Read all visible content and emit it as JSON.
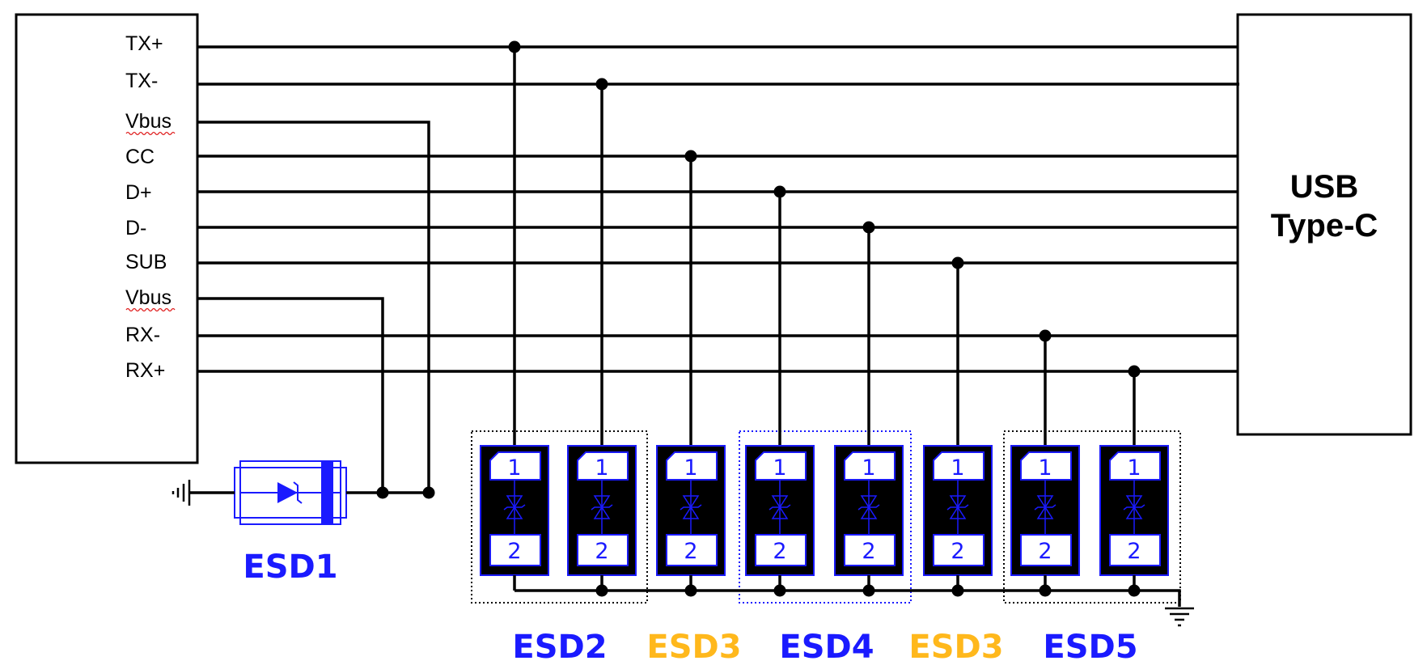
{
  "left_block": {
    "pins": [
      "TX+",
      "TX-",
      "Vbus",
      "CC",
      "D+",
      "D-",
      "SUB",
      "Vbus",
      "RX-",
      "RX+"
    ]
  },
  "connector": {
    "line1": "USB",
    "line2": "Type-C"
  },
  "esd1": {
    "label": "ESD1",
    "color": "#1a1aff"
  },
  "esd_groups": [
    {
      "label": "ESD2",
      "color": "#1a1aff",
      "fill": "#dbeaf2",
      "border": "dotted-black"
    },
    {
      "label": "ESD3",
      "color": "#ffb81c",
      "fill": "#ffffff",
      "border": "none"
    },
    {
      "label": "ESD4",
      "color": "#1a1aff",
      "fill": "#fbe5d8",
      "border": "dotted-blue"
    },
    {
      "label": "ESD3",
      "color": "#ffb81c",
      "fill": "#ffffff",
      "border": "none"
    },
    {
      "label": "ESD5",
      "color": "#1a1aff",
      "fill": "#e4ead9",
      "border": "dotted-black"
    }
  ],
  "device_pins": {
    "top": "1",
    "bottom": "2"
  },
  "colors": {
    "wire": "#000000",
    "device_outline": "#1a1aff"
  }
}
